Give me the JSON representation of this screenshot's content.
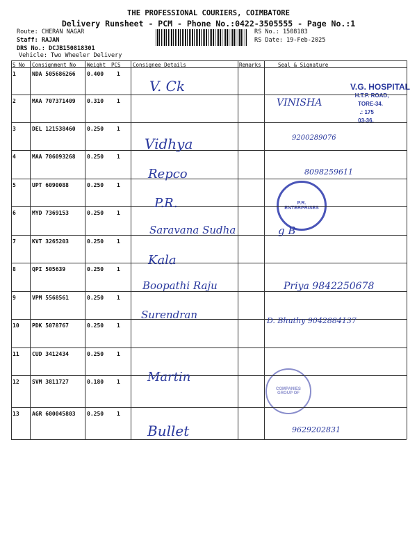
{
  "header": {
    "company": "THE PROFESSIONAL COURIERS, COIMBATORE",
    "title": "Delivery Runsheet - PCM - Phone No.:0422-3505555 - Page No.:1",
    "route": "Route: CHERAN NAGAR",
    "staff": "Staff: RAJAN",
    "drs_no": "DRS No.: DCJB150818301",
    "vehicle": "Vehicle: Two Wheeler Delivery",
    "rs_no": "RS No.: 1508183",
    "rs_date": "RS Date: 19-Feb-2025"
  },
  "table": {
    "columns": [
      "S No",
      "Consignment No",
      "Weight",
      "PCS",
      "Consignee Details",
      "Remarks",
      "Seal & Signature"
    ],
    "rows": [
      {
        "sno": "1",
        "consignment": "NDA 505686266",
        "weight": "0.400",
        "pcs": "1",
        "consignee": "V. Ck",
        "seal": "VINISHA"
      },
      {
        "sno": "2",
        "consignment": "MAA 707371409",
        "weight": "0.310",
        "pcs": "1",
        "consignee": "",
        "seal": ""
      },
      {
        "sno": "3",
        "consignment": "DEL 121538460",
        "weight": "0.250",
        "pcs": "1",
        "consignee": "Vidhya",
        "seal": "9200289076"
      },
      {
        "sno": "4",
        "consignment": "MAA 706093268",
        "weight": "0.250",
        "pcs": "1",
        "consignee": "Repco",
        "seal": "8098259611"
      },
      {
        "sno": "5",
        "consignment": "UPT 6090088",
        "weight": "0.250",
        "pcs": "1",
        "consignee": "P.R.",
        "seal": ""
      },
      {
        "sno": "6",
        "consignment": "MYD 7369153",
        "weight": "0.250",
        "pcs": "1",
        "consignee": "Saravana Sudha",
        "seal": "g B"
      },
      {
        "sno": "7",
        "consignment": "KVT 3265203",
        "weight": "0.250",
        "pcs": "1",
        "consignee": "Kala",
        "seal": ""
      },
      {
        "sno": "8",
        "consignment": "QPI 505639",
        "weight": "0.250",
        "pcs": "1",
        "consignee": "Boopathi Raju",
        "seal": "Priya 9842250678"
      },
      {
        "sno": "9",
        "consignment": "VPM 5568561",
        "weight": "0.250",
        "pcs": "1",
        "consignee": "Surendran",
        "seal": "D. Bhuthy 9042884137"
      },
      {
        "sno": "10",
        "consignment": "PDK 5078767",
        "weight": "0.250",
        "pcs": "1",
        "consignee": "",
        "seal": ""
      },
      {
        "sno": "11",
        "consignment": "CUD 3412434",
        "weight": "0.250",
        "pcs": "1",
        "consignee": "",
        "seal": ""
      },
      {
        "sno": "12",
        "consignment": "SVM 3811727",
        "weight": "0.180",
        "pcs": "1",
        "consignee": "Martin",
        "seal": ""
      },
      {
        "sno": "13",
        "consignment": "AGR 600045803",
        "weight": "0.250",
        "pcs": "1",
        "consignee": "Bullet",
        "seal": "9629202831"
      }
    ]
  },
  "stamps": {
    "vg_hospital": "V.G. HOSPITAL  T.P. ROAD, ...TORE-34. ...: 175 ...03-36.",
    "pr_enterprises": "P.R. ENTERPRISES",
    "companies_group": "COMPANIES GROUP OF"
  },
  "colors": {
    "ink": "#2b3a9e",
    "print": "#111111"
  }
}
